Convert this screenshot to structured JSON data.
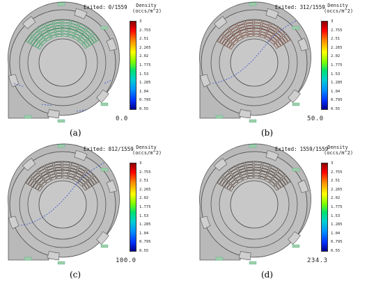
{
  "colorbar": {
    "title": "Density\n(occs/m^2)",
    "ticks": [
      "3",
      "2.755",
      "2.51",
      "2.265",
      "2.02",
      "1.775",
      "1.53",
      "1.285",
      "1.04",
      "0.795",
      "0.55"
    ]
  },
  "panels": [
    {
      "label": "(a)",
      "exited_label": "Exited:",
      "exited_value": "0/1559",
      "time": "0.0"
    },
    {
      "label": "(b)",
      "exited_label": "Exited:",
      "exited_value": "312/1559",
      "time": "50.0"
    },
    {
      "label": "(c)",
      "exited_label": "Exited:",
      "exited_value": "812/1559",
      "time": "100.0"
    },
    {
      "label": "(d)",
      "exited_label": "Exited:",
      "exited_value": "1559/1559",
      "time": "234.3"
    }
  ]
}
